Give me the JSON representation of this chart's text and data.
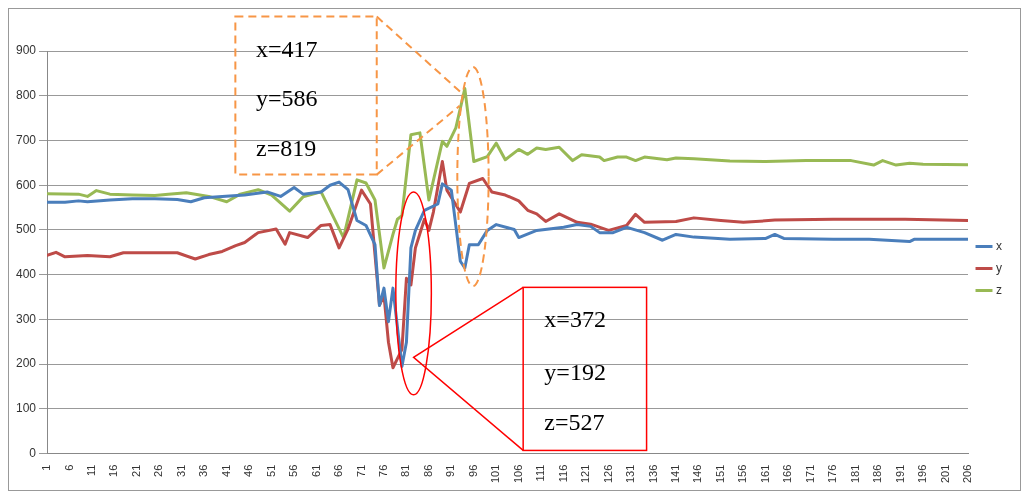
{
  "chart_data": {
    "type": "line",
    "xlim": [
      1,
      206
    ],
    "xticks": [
      1,
      6,
      11,
      16,
      21,
      26,
      31,
      36,
      41,
      46,
      51,
      56,
      61,
      66,
      71,
      76,
      81,
      86,
      91,
      96,
      101,
      106,
      111,
      116,
      121,
      126,
      131,
      136,
      141,
      146,
      151,
      156,
      161,
      166,
      171,
      176,
      181,
      186,
      191,
      196,
      201,
      206
    ],
    "ylim": [
      0,
      900
    ],
    "yticks": [
      0,
      100,
      200,
      300,
      400,
      500,
      600,
      700,
      800,
      900
    ],
    "grid": "y",
    "legend": "right",
    "marker": "none",
    "line_style": "solid",
    "series": [
      {
        "name": "x",
        "color": "#4a7ebb",
        "x": [
          1,
          5,
          8,
          10,
          15,
          20,
          25,
          30,
          33,
          36,
          40,
          45,
          50,
          53,
          56,
          58,
          62,
          64,
          66,
          68,
          70,
          72,
          74,
          75,
          76,
          77,
          78,
          80,
          81,
          82,
          83,
          85,
          88,
          89,
          91,
          93,
          94,
          95,
          97,
          99,
          101,
          105,
          106,
          110,
          116,
          119,
          122,
          124,
          127,
          130,
          131,
          134,
          138,
          141,
          145,
          153,
          161,
          163,
          165,
          176,
          184,
          193,
          194,
          206
        ],
        "values": [
          562,
          562,
          565,
          563,
          567,
          570,
          570,
          568,
          563,
          572,
          575,
          578,
          585,
          575,
          595,
          580,
          585,
          600,
          607,
          590,
          521,
          510,
          467,
          331,
          370,
          295,
          370,
          195,
          249,
          460,
          499,
          544,
          558,
          603,
          589,
          430,
          415,
          467,
          467,
          499,
          512,
          501,
          483,
          499,
          506,
          512,
          508,
          494,
          494,
          506,
          503,
          494,
          477,
          490,
          484,
          479,
          481,
          490,
          481,
          479,
          479,
          474,
          479,
          479
        ]
      },
      {
        "name": "y",
        "color": "#be4b48",
        "x": [
          1,
          3,
          5,
          10,
          15,
          18,
          30,
          34,
          37,
          40,
          43,
          45,
          48,
          52,
          54,
          55,
          59,
          62,
          64,
          66,
          68,
          71,
          73,
          75,
          76,
          77,
          78,
          80,
          81,
          82,
          83,
          85,
          86,
          87,
          89,
          90,
          93,
          95,
          98,
          100,
          103,
          106,
          108,
          110,
          112,
          115,
          119,
          122,
          126,
          130,
          132,
          134,
          141,
          145,
          151,
          156,
          163,
          176,
          192,
          206
        ],
        "values": [
          443,
          450,
          440,
          443,
          440,
          449,
          449,
          435,
          445,
          452,
          465,
          472,
          494,
          502,
          468,
          494,
          483,
          510,
          512,
          460,
          502,
          589,
          558,
          332,
          354,
          249,
          192,
          233,
          392,
          377,
          460,
          524,
          499,
          540,
          653,
          589,
          540,
          604,
          615,
          585,
          578,
          565,
          544,
          536,
          519,
          536,
          517,
          513,
          499,
          510,
          535,
          517,
          519,
          527,
          521,
          517,
          522,
          524,
          524,
          521
        ]
      },
      {
        "name": "z",
        "color": "#98b954",
        "x": [
          1,
          8,
          10,
          12,
          15,
          20,
          25,
          28,
          32,
          37,
          41,
          44,
          48,
          51,
          55,
          58,
          62,
          67,
          70,
          72,
          74,
          76,
          78,
          79,
          80,
          82,
          84,
          86,
          89,
          90,
          92,
          94,
          96,
          99,
          101,
          103,
          106,
          108,
          110,
          112,
          115,
          118,
          120,
          124,
          125,
          128,
          130,
          132,
          134,
          139,
          141,
          145,
          153,
          161,
          170,
          180,
          185,
          187,
          190,
          193,
          196,
          206
        ],
        "values": [
          581,
          580,
          575,
          588,
          580,
          578,
          577,
          580,
          583,
          575,
          563,
          580,
          590,
          578,
          542,
          574,
          585,
          483,
          612,
          605,
          567,
          415,
          490,
          524,
          532,
          713,
          717,
          567,
          698,
          687,
          728,
          816,
          653,
          664,
          694,
          657,
          680,
          669,
          683,
          680,
          685,
          655,
          668,
          663,
          655,
          663,
          663,
          655,
          663,
          657,
          661,
          659,
          654,
          653,
          655,
          655,
          645,
          655,
          645,
          649,
          647,
          646
        ]
      }
    ],
    "annotations": [
      "x=417",
      "y=586",
      "z=819",
      "x=372",
      "y=192",
      "z=527"
    ]
  }
}
